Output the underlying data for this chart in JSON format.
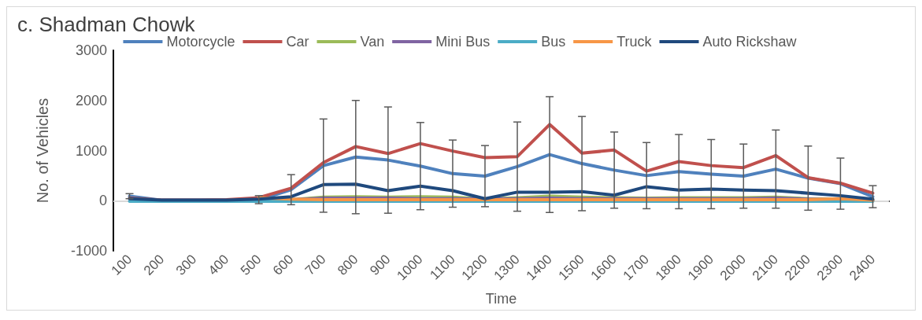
{
  "chart_data": {
    "type": "line",
    "title": "c. Shadman Chowk",
    "xlabel": "Time",
    "ylabel": "No. of Vehicles",
    "categories": [
      "100",
      "200",
      "300",
      "400",
      "500",
      "600",
      "700",
      "800",
      "900",
      "1000",
      "1100",
      "1200",
      "1300",
      "1400",
      "1500",
      "1600",
      "1700",
      "1800",
      "1900",
      "2000",
      "2100",
      "2200",
      "2300",
      "2400"
    ],
    "ylim": [
      -1000,
      3000
    ],
    "yticks": [
      -1000,
      0,
      1000,
      2000,
      3000
    ],
    "grid": false,
    "legend": "top",
    "marker": "none",
    "line_style": "solid",
    "ref_lines": [
      {
        "axis": "y",
        "value": 0,
        "color": "#d9d9d9"
      }
    ],
    "series": [
      {
        "name": "Motorcycle",
        "color": "#4f81bd",
        "values": [
          90,
          10,
          10,
          10,
          20,
          220,
          700,
          870,
          810,
          690,
          540,
          490,
          680,
          920,
          740,
          610,
          500,
          580,
          530,
          490,
          630,
          450,
          340,
          80
        ],
        "errors": [
          50,
          null,
          null,
          null,
          80,
          300,
          930,
          1130,
          1060,
          870,
          670,
          610,
          890,
          1155,
          940,
          760,
          660,
          740,
          690,
          640,
          780,
          640,
          510,
          220
        ]
      },
      {
        "name": "Car",
        "color": "#c0504d",
        "values": [
          50,
          10,
          10,
          20,
          60,
          250,
          760,
          1080,
          940,
          1140,
          990,
          860,
          880,
          1520,
          950,
          1010,
          590,
          780,
          700,
          660,
          900,
          460,
          350,
          150
        ]
      },
      {
        "name": "Van",
        "color": "#9bbb59",
        "values": [
          null,
          null,
          null,
          null,
          10,
          20,
          70,
          80,
          70,
          80,
          70,
          30,
          60,
          90,
          70,
          60,
          50,
          60,
          60,
          60,
          70,
          40,
          30,
          10
        ]
      },
      {
        "name": "Mini Bus",
        "color": "#8064a2",
        "values": [
          null,
          null,
          null,
          null,
          10,
          20,
          50,
          50,
          50,
          40,
          40,
          30,
          40,
          50,
          40,
          40,
          40,
          40,
          40,
          40,
          50,
          30,
          20,
          10
        ]
      },
      {
        "name": "Bus",
        "color": "#4bacc6",
        "values": [
          -10,
          -10,
          -10,
          -10,
          -10,
          -10,
          -10,
          -10,
          -10,
          -10,
          -10,
          -10,
          -10,
          -10,
          -10,
          -10,
          -10,
          -10,
          -10,
          -10,
          -10,
          -10,
          -10,
          -10
        ]
      },
      {
        "name": "Truck",
        "color": "#f79646",
        "values": [
          null,
          null,
          null,
          null,
          60,
          30,
          20,
          20,
          20,
          20,
          20,
          20,
          20,
          20,
          20,
          20,
          20,
          20,
          20,
          20,
          20,
          20,
          40,
          10
        ]
      },
      {
        "name": "Auto Rickshaw",
        "color": "#1f497d",
        "values": [
          40,
          10,
          10,
          10,
          30,
          80,
          320,
          330,
          200,
          290,
          200,
          40,
          170,
          170,
          180,
          110,
          280,
          210,
          230,
          210,
          200,
          150,
          100,
          30
        ]
      }
    ]
  }
}
